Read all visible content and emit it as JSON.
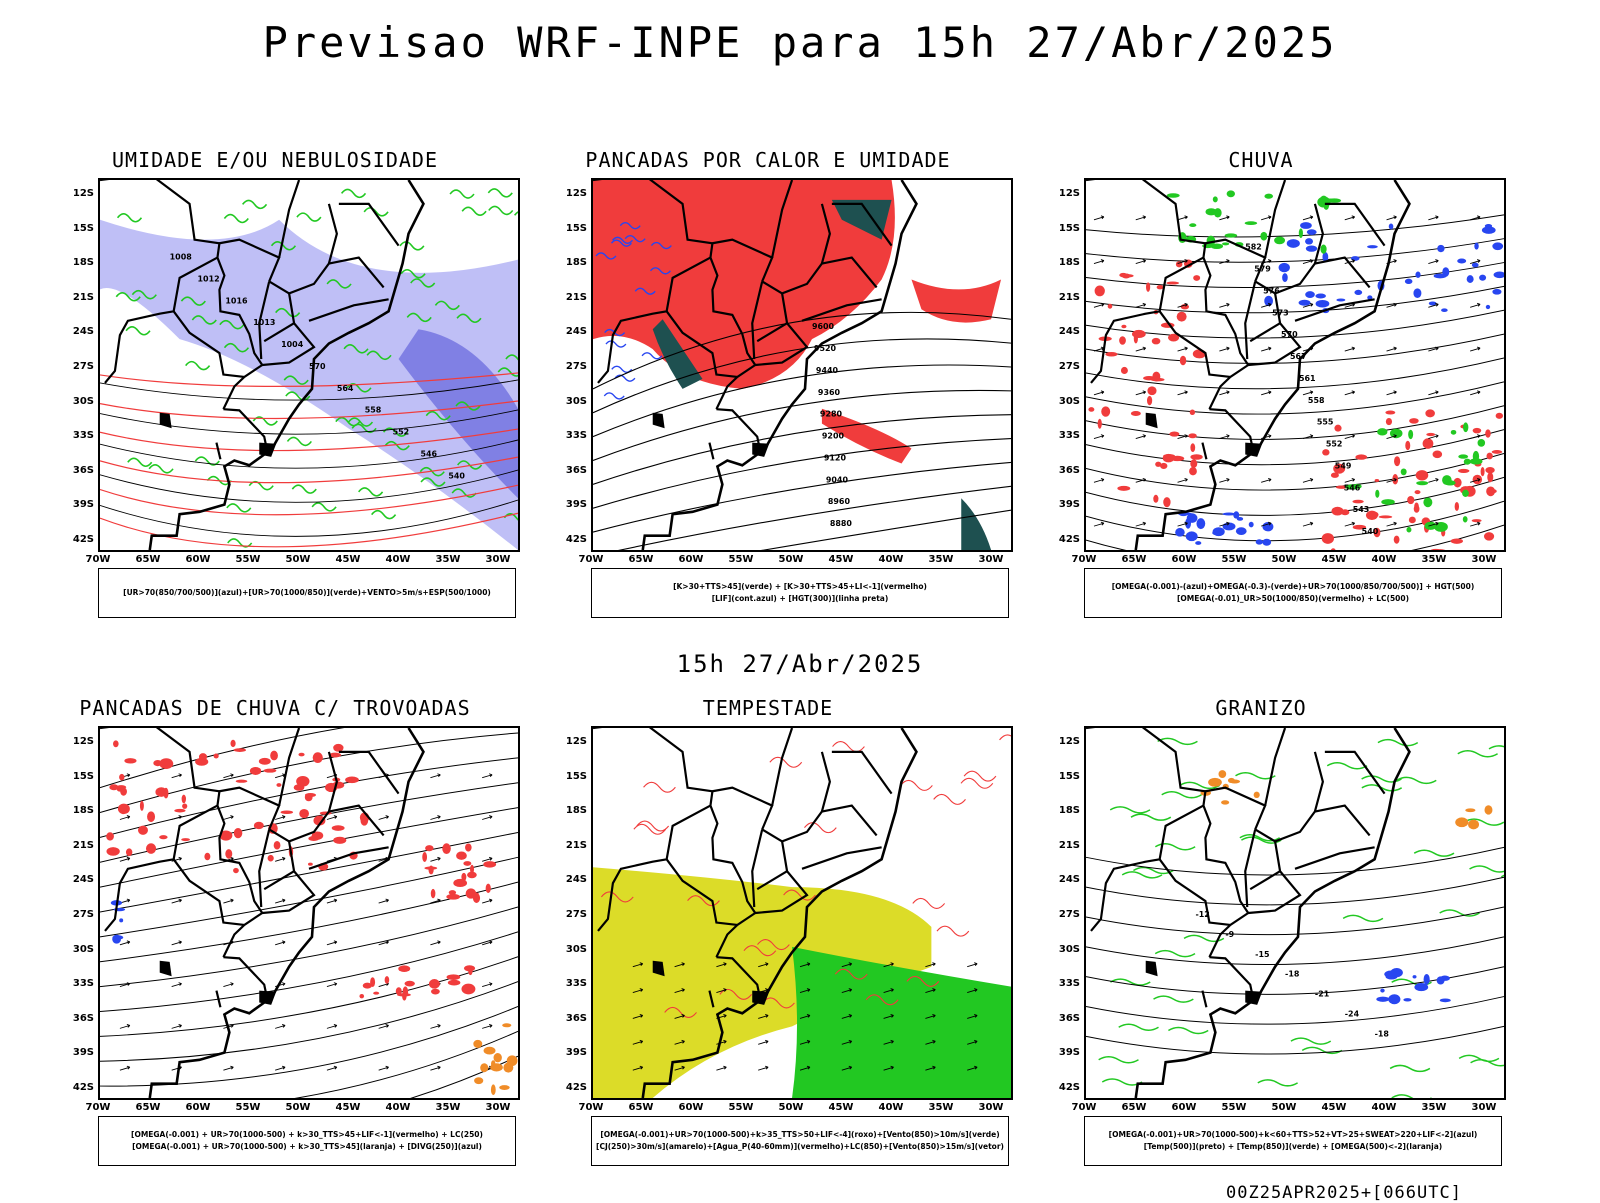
{
  "title": "Previsao WRF-INPE  para 15h 27/Abr/2025",
  "subtitle": "15h 27/Abr/2025",
  "footer": "00Z25APR2025+[066UTC]",
  "lat_labels": [
    "12S",
    "15S",
    "18S",
    "21S",
    "24S",
    "27S",
    "30S",
    "33S",
    "36S",
    "39S",
    "42S"
  ],
  "lon_labels": [
    "70W",
    "65W",
    "60W",
    "55W",
    "50W",
    "45W",
    "40W",
    "35W",
    "30W"
  ],
  "colors": {
    "green": "#22c822",
    "red": "#f03c3c",
    "blue": "#2846f0",
    "lavender": "#b4b4f5",
    "darkgreen": "#1e5050",
    "yellow": "#dcdc28",
    "orange": "#f08c28",
    "black": "#000000"
  },
  "panels": [
    {
      "title": "UMIDADE E/OU NEBULOSIDADE",
      "legend": [
        "[UR>70(850/700/500)](azul)+[UR>70(1000/850)](verde)+VENTO>5m/s+ESP(500/1000)"
      ],
      "contour_labels": [
        "1008",
        "1012",
        "1016",
        "1013",
        "1004",
        "570",
        "564",
        "558",
        "552",
        "546",
        "540"
      ]
    },
    {
      "title": "PANCADAS POR CALOR E UMIDADE",
      "legend": [
        "[K>30+TTS>45](verde) + [K>30+TTS>45+LI<-1](vermelho)",
        "[LIF](cont.azul) + [HGT(300)](linha preta)"
      ],
      "contour_labels": [
        "9600",
        "9520",
        "9440",
        "9360",
        "9280",
        "9200",
        "9120",
        "9040",
        "8960",
        "8880"
      ]
    },
    {
      "title": "CHUVA",
      "legend": [
        "[OMEGA(-0.001)-(azul)+OMEGA(-0.3)-(verde)+UR>70(1000/850/700/500)] + HGT(500)",
        "[OMEGA(-0.01)_UR>50(1000/850)(vermelho) + LC(500)"
      ],
      "contour_labels": [
        "582",
        "579",
        "576",
        "573",
        "570",
        "567",
        "561",
        "558",
        "555",
        "552",
        "549",
        "546",
        "543",
        "540"
      ]
    },
    {
      "title": "PANCADAS DE CHUVA C/ TROVOADAS",
      "legend": [
        "[OMEGA(-0.001) + UR>70(1000-500) + k>30_TTS>45+LIF<-1](vermelho) + LC(250)",
        "[OMEGA(-0.001) + UR>70(1000-500) + k>30_TTS>45](laranja) + [DIVG(250)](azul)"
      ],
      "contour_labels": []
    },
    {
      "title": "TEMPESTADE",
      "legend": [
        "[OMEGA(-0.001)+UR>70(1000-500)+k>35_TTS>50+LIF<-4](roxo)+[Vento(850)>10m/s](verde)",
        "[CJ(250)>30m/s](amarelo)+[Agua_P(40-60mm)](vermelho)+LC(850)+[Vento(850)>15m/s](vetor)"
      ],
      "contour_labels": []
    },
    {
      "title": "GRANIZO",
      "legend": [
        "[OMEGA(-0.001)+UR>70(1000-500)+k<60+TTS>52+VT>25+SWEAT>220+LIF<-2](azul)",
        "[Temp(500)](preto) + [Temp(850)](verde) + [OMEGA(500)<-2](laranja)"
      ],
      "contour_labels": [
        "-12",
        "-9",
        "-15",
        "-18",
        "-21",
        "-24",
        "-18"
      ]
    }
  ]
}
